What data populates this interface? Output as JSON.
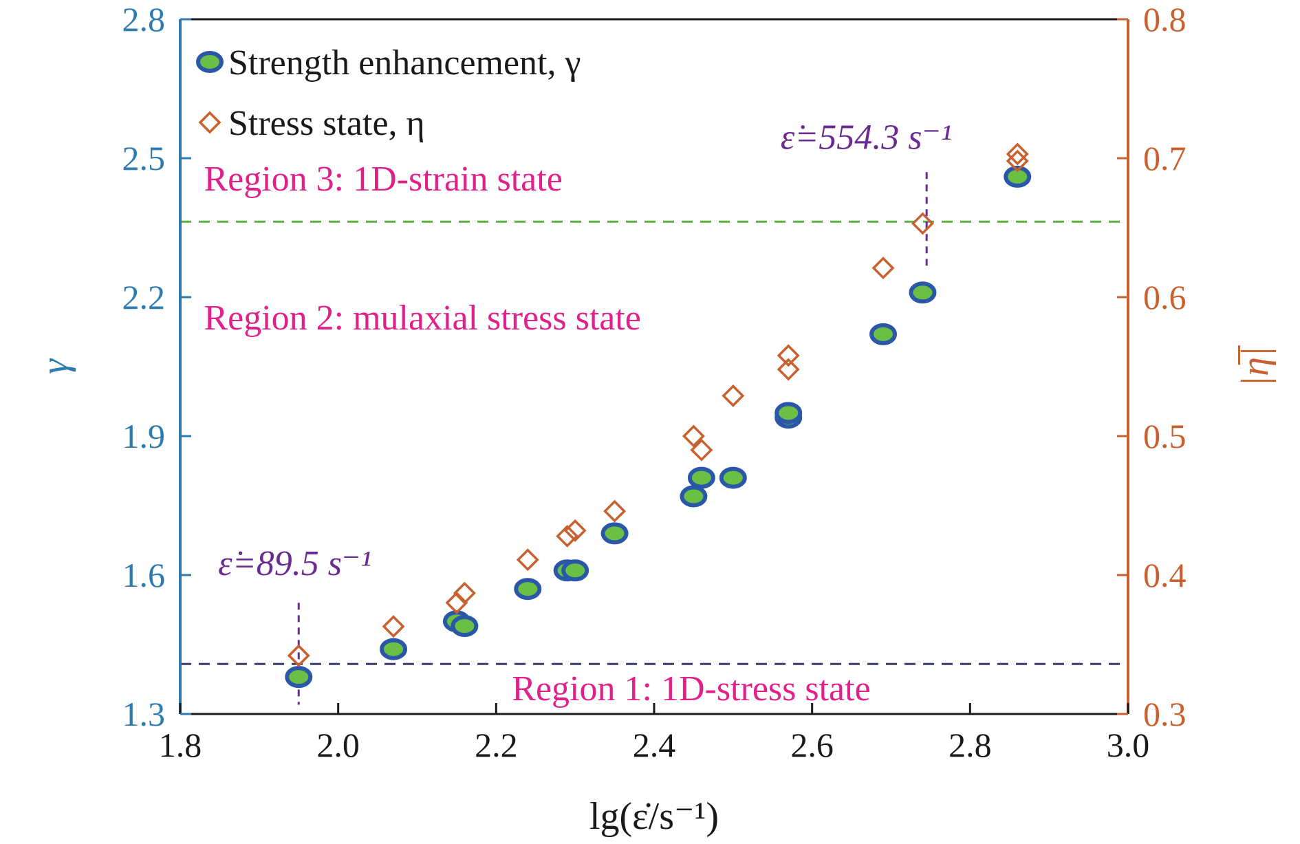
{
  "chart_data": {
    "type": "scatter",
    "xlabel": "lg(ε̇/s⁻¹)",
    "ylabel_left": "γ",
    "ylabel_right": "|η̅|",
    "xlim": [
      1.8,
      3.0
    ],
    "ylim_left": [
      1.3,
      2.8
    ],
    "ylim_right": [
      0.3,
      0.8
    ],
    "x_ticks": [
      "1.8",
      "2.0",
      "2.2",
      "2.4",
      "2.6",
      "2.8",
      "3.0"
    ],
    "y_ticks_left": [
      "1.3",
      "1.6",
      "1.9",
      "2.2",
      "2.5",
      "2.8"
    ],
    "y_ticks_right": [
      "0.3",
      "0.4",
      "0.5",
      "0.6",
      "0.7",
      "0.8"
    ],
    "grid": false,
    "legend_position": "top-left",
    "series": [
      {
        "name": "Strength enhancement, γ",
        "axis": "left",
        "marker": "filled-ellipse",
        "points": [
          [
            1.95,
            1.38
          ],
          [
            2.07,
            1.44
          ],
          [
            2.15,
            1.5
          ],
          [
            2.16,
            1.49
          ],
          [
            2.24,
            1.57
          ],
          [
            2.29,
            1.61
          ],
          [
            2.3,
            1.61
          ],
          [
            2.35,
            1.69
          ],
          [
            2.45,
            1.77
          ],
          [
            2.46,
            1.81
          ],
          [
            2.5,
            1.81
          ],
          [
            2.57,
            1.94
          ],
          [
            2.57,
            1.95
          ],
          [
            2.69,
            2.12
          ],
          [
            2.74,
            2.21
          ],
          [
            2.86,
            2.46
          ]
        ]
      },
      {
        "name": "Stress state, η",
        "axis": "right",
        "marker": "open-diamond",
        "points": [
          [
            1.95,
            0.342
          ],
          [
            2.07,
            0.363
          ],
          [
            2.15,
            0.38
          ],
          [
            2.16,
            0.387
          ],
          [
            2.24,
            0.411
          ],
          [
            2.29,
            0.428
          ],
          [
            2.3,
            0.432
          ],
          [
            2.35,
            0.446
          ],
          [
            2.45,
            0.5
          ],
          [
            2.46,
            0.49
          ],
          [
            2.5,
            0.529
          ],
          [
            2.57,
            0.558
          ],
          [
            2.57,
            0.548
          ],
          [
            2.69,
            0.621
          ],
          [
            2.74,
            0.653
          ],
          [
            2.86,
            0.698
          ],
          [
            2.86,
            0.703
          ]
        ]
      }
    ],
    "reference_lines": [
      {
        "axis": "left",
        "y": 2.363,
        "color": "#5fae46",
        "style": "dashed"
      },
      {
        "axis": "left",
        "y": 1.408,
        "color": "#3a3a6e",
        "style": "dashed"
      }
    ],
    "region_labels": [
      {
        "text": "Region 3: 1D-strain state",
        "x": 1.83,
        "y": 2.43
      },
      {
        "text": "Region 2: mulaxial stress state",
        "x": 1.83,
        "y": 2.13
      },
      {
        "text": "Region 1: 1D-stress state",
        "x": 2.22,
        "y": 1.33
      }
    ],
    "annotations": [
      {
        "text": "ε̇=89.5 s⁻¹",
        "x": 1.95,
        "x_text": 1.848,
        "y_text": 1.6,
        "line_from": 1.54,
        "line_to": 1.32
      },
      {
        "text": "ε̇=554.3 s⁻¹",
        "x": 2.745,
        "x_text": 2.56,
        "y_text": 2.52,
        "line_from": 2.47,
        "line_to": 2.26
      }
    ],
    "colors": {
      "left_axis": "#2e7bb0",
      "right_axis": "#c8612f",
      "ellipse_fill": "#6abf45",
      "ellipse_stroke": "#2a57a8",
      "diamond_stroke": "#c8612f",
      "region_text": "#e0218a",
      "annotation": "#6a2c91"
    }
  }
}
